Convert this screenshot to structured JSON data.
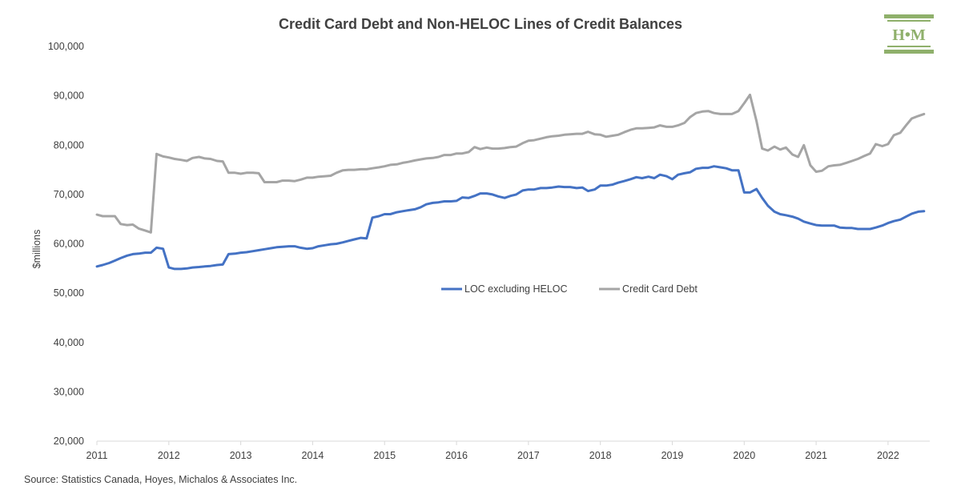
{
  "brand_color": "#8fb06b",
  "logo": {
    "text": "H•M"
  },
  "source": "Source: Statistics Canada, Hoyes, Michalos & Associates Inc.",
  "chart_data": {
    "type": "line",
    "title": "Credit Card Debt and Non-HELOC Lines of Credit Balances",
    "ylabel": "$millions",
    "xlabel": "",
    "ylim": [
      20000,
      100000
    ],
    "yticks": [
      20000,
      30000,
      40000,
      50000,
      60000,
      70000,
      80000,
      90000,
      100000
    ],
    "ytick_labels": [
      "20,000",
      "30,000",
      "40,000",
      "50,000",
      "60,000",
      "70,000",
      "80,000",
      "90,000",
      "100,000"
    ],
    "xlim": [
      2011.0,
      2022.58
    ],
    "xticks": [
      "2011",
      "2012",
      "2013",
      "2014",
      "2015",
      "2016",
      "2017",
      "2018",
      "2019",
      "2020",
      "2021",
      "2022"
    ],
    "grid": false,
    "legend": "center",
    "series": [
      {
        "name": "LOC excluding HELOC",
        "color": "#4472c4",
        "points": [
          [
            2011.0,
            55400
          ],
          [
            2011.08,
            55700
          ],
          [
            2011.17,
            56100
          ],
          [
            2011.25,
            56600
          ],
          [
            2011.33,
            57100
          ],
          [
            2011.42,
            57600
          ],
          [
            2011.5,
            57900
          ],
          [
            2011.58,
            58000
          ],
          [
            2011.67,
            58200
          ],
          [
            2011.75,
            58200
          ],
          [
            2011.83,
            59200
          ],
          [
            2011.92,
            59000
          ],
          [
            2012.0,
            55200
          ],
          [
            2012.08,
            54900
          ],
          [
            2012.17,
            54900
          ],
          [
            2012.25,
            55000
          ],
          [
            2012.33,
            55200
          ],
          [
            2012.42,
            55300
          ],
          [
            2012.5,
            55400
          ],
          [
            2012.58,
            55500
          ],
          [
            2012.67,
            55700
          ],
          [
            2012.75,
            55800
          ],
          [
            2012.83,
            57900
          ],
          [
            2012.92,
            58000
          ],
          [
            2013.0,
            58200
          ],
          [
            2013.08,
            58300
          ],
          [
            2013.17,
            58500
          ],
          [
            2013.25,
            58700
          ],
          [
            2013.33,
            58900
          ],
          [
            2013.42,
            59100
          ],
          [
            2013.5,
            59300
          ],
          [
            2013.58,
            59400
          ],
          [
            2013.67,
            59500
          ],
          [
            2013.75,
            59500
          ],
          [
            2013.83,
            59200
          ],
          [
            2013.92,
            59000
          ],
          [
            2014.0,
            59100
          ],
          [
            2014.08,
            59500
          ],
          [
            2014.17,
            59700
          ],
          [
            2014.25,
            59900
          ],
          [
            2014.33,
            60000
          ],
          [
            2014.42,
            60300
          ],
          [
            2014.5,
            60600
          ],
          [
            2014.58,
            60900
          ],
          [
            2014.67,
            61200
          ],
          [
            2014.75,
            61100
          ],
          [
            2014.83,
            65300
          ],
          [
            2014.92,
            65600
          ],
          [
            2015.0,
            66000
          ],
          [
            2015.08,
            66000
          ],
          [
            2015.17,
            66400
          ],
          [
            2015.25,
            66600
          ],
          [
            2015.33,
            66800
          ],
          [
            2015.42,
            67000
          ],
          [
            2015.5,
            67400
          ],
          [
            2015.58,
            68000
          ],
          [
            2015.67,
            68300
          ],
          [
            2015.75,
            68400
          ],
          [
            2015.83,
            68600
          ],
          [
            2015.92,
            68600
          ],
          [
            2016.0,
            68700
          ],
          [
            2016.08,
            69400
          ],
          [
            2016.17,
            69300
          ],
          [
            2016.25,
            69700
          ],
          [
            2016.33,
            70200
          ],
          [
            2016.42,
            70200
          ],
          [
            2016.5,
            70000
          ],
          [
            2016.58,
            69600
          ],
          [
            2016.67,
            69300
          ],
          [
            2016.75,
            69700
          ],
          [
            2016.83,
            70000
          ],
          [
            2016.92,
            70800
          ],
          [
            2017.0,
            71000
          ],
          [
            2017.08,
            71000
          ],
          [
            2017.17,
            71300
          ],
          [
            2017.25,
            71300
          ],
          [
            2017.33,
            71400
          ],
          [
            2017.42,
            71600
          ],
          [
            2017.5,
            71500
          ],
          [
            2017.58,
            71500
          ],
          [
            2017.67,
            71300
          ],
          [
            2017.75,
            71400
          ],
          [
            2017.83,
            70700
          ],
          [
            2017.92,
            71000
          ],
          [
            2018.0,
            71800
          ],
          [
            2018.08,
            71800
          ],
          [
            2018.17,
            72000
          ],
          [
            2018.25,
            72400
          ],
          [
            2018.33,
            72700
          ],
          [
            2018.42,
            73100
          ],
          [
            2018.5,
            73500
          ],
          [
            2018.58,
            73300
          ],
          [
            2018.67,
            73600
          ],
          [
            2018.75,
            73300
          ],
          [
            2018.83,
            74000
          ],
          [
            2018.92,
            73700
          ],
          [
            2019.0,
            73100
          ],
          [
            2019.08,
            74000
          ],
          [
            2019.17,
            74300
          ],
          [
            2019.25,
            74500
          ],
          [
            2019.33,
            75200
          ],
          [
            2019.42,
            75400
          ],
          [
            2019.5,
            75400
          ],
          [
            2019.58,
            75700
          ],
          [
            2019.67,
            75500
          ],
          [
            2019.75,
            75300
          ],
          [
            2019.83,
            74900
          ],
          [
            2019.92,
            74900
          ],
          [
            2020.0,
            70400
          ],
          [
            2020.08,
            70400
          ],
          [
            2020.17,
            71100
          ],
          [
            2020.25,
            69300
          ],
          [
            2020.33,
            67700
          ],
          [
            2020.42,
            66500
          ],
          [
            2020.5,
            66000
          ],
          [
            2020.58,
            65800
          ],
          [
            2020.67,
            65500
          ],
          [
            2020.75,
            65100
          ],
          [
            2020.83,
            64500
          ],
          [
            2020.92,
            64100
          ],
          [
            2021.0,
            63800
          ],
          [
            2021.08,
            63700
          ],
          [
            2021.17,
            63700
          ],
          [
            2021.25,
            63700
          ],
          [
            2021.33,
            63300
          ],
          [
            2021.42,
            63200
          ],
          [
            2021.5,
            63200
          ],
          [
            2021.58,
            63000
          ],
          [
            2021.67,
            63000
          ],
          [
            2021.75,
            63000
          ],
          [
            2021.83,
            63300
          ],
          [
            2021.92,
            63700
          ],
          [
            2022.0,
            64200
          ],
          [
            2022.08,
            64600
          ],
          [
            2022.17,
            64900
          ],
          [
            2022.25,
            65500
          ],
          [
            2022.33,
            66100
          ],
          [
            2022.42,
            66500
          ],
          [
            2022.5,
            66600
          ]
        ]
      },
      {
        "name": "Credit Card Debt",
        "color": "#a5a5a5",
        "points": [
          [
            2011.0,
            65900
          ],
          [
            2011.08,
            65600
          ],
          [
            2011.17,
            65600
          ],
          [
            2011.25,
            65600
          ],
          [
            2011.33,
            64000
          ],
          [
            2011.42,
            63800
          ],
          [
            2011.5,
            63900
          ],
          [
            2011.58,
            63100
          ],
          [
            2011.67,
            62700
          ],
          [
            2011.75,
            62300
          ],
          [
            2011.83,
            78200
          ],
          [
            2011.92,
            77700
          ],
          [
            2012.0,
            77500
          ],
          [
            2012.08,
            77200
          ],
          [
            2012.17,
            77000
          ],
          [
            2012.25,
            76800
          ],
          [
            2012.33,
            77400
          ],
          [
            2012.42,
            77600
          ],
          [
            2012.5,
            77300
          ],
          [
            2012.58,
            77200
          ],
          [
            2012.67,
            76800
          ],
          [
            2012.75,
            76700
          ],
          [
            2012.83,
            74400
          ],
          [
            2012.92,
            74400
          ],
          [
            2013.0,
            74200
          ],
          [
            2013.08,
            74400
          ],
          [
            2013.17,
            74400
          ],
          [
            2013.25,
            74300
          ],
          [
            2013.33,
            72500
          ],
          [
            2013.42,
            72500
          ],
          [
            2013.5,
            72500
          ],
          [
            2013.58,
            72800
          ],
          [
            2013.67,
            72800
          ],
          [
            2013.75,
            72700
          ],
          [
            2013.83,
            73000
          ],
          [
            2013.92,
            73400
          ],
          [
            2014.0,
            73400
          ],
          [
            2014.08,
            73600
          ],
          [
            2014.17,
            73700
          ],
          [
            2014.25,
            73800
          ],
          [
            2014.33,
            74400
          ],
          [
            2014.42,
            74900
          ],
          [
            2014.5,
            75000
          ],
          [
            2014.58,
            75000
          ],
          [
            2014.67,
            75100
          ],
          [
            2014.75,
            75100
          ],
          [
            2014.83,
            75300
          ],
          [
            2014.92,
            75500
          ],
          [
            2015.0,
            75700
          ],
          [
            2015.08,
            76000
          ],
          [
            2015.17,
            76100
          ],
          [
            2015.25,
            76400
          ],
          [
            2015.33,
            76600
          ],
          [
            2015.42,
            76900
          ],
          [
            2015.5,
            77100
          ],
          [
            2015.58,
            77300
          ],
          [
            2015.67,
            77400
          ],
          [
            2015.75,
            77600
          ],
          [
            2015.83,
            78000
          ],
          [
            2015.92,
            78000
          ],
          [
            2016.0,
            78300
          ],
          [
            2016.08,
            78300
          ],
          [
            2016.17,
            78600
          ],
          [
            2016.25,
            79600
          ],
          [
            2016.33,
            79200
          ],
          [
            2016.42,
            79500
          ],
          [
            2016.5,
            79300
          ],
          [
            2016.58,
            79300
          ],
          [
            2016.67,
            79400
          ],
          [
            2016.75,
            79600
          ],
          [
            2016.83,
            79700
          ],
          [
            2016.92,
            80400
          ],
          [
            2017.0,
            80900
          ],
          [
            2017.08,
            81000
          ],
          [
            2017.17,
            81300
          ],
          [
            2017.25,
            81600
          ],
          [
            2017.33,
            81800
          ],
          [
            2017.42,
            81900
          ],
          [
            2017.5,
            82100
          ],
          [
            2017.58,
            82200
          ],
          [
            2017.67,
            82300
          ],
          [
            2017.75,
            82300
          ],
          [
            2017.83,
            82700
          ],
          [
            2017.92,
            82200
          ],
          [
            2018.0,
            82100
          ],
          [
            2018.08,
            81700
          ],
          [
            2018.17,
            81900
          ],
          [
            2018.25,
            82100
          ],
          [
            2018.33,
            82600
          ],
          [
            2018.42,
            83100
          ],
          [
            2018.5,
            83400
          ],
          [
            2018.58,
            83400
          ],
          [
            2018.67,
            83500
          ],
          [
            2018.75,
            83600
          ],
          [
            2018.83,
            84000
          ],
          [
            2018.92,
            83700
          ],
          [
            2019.0,
            83700
          ],
          [
            2019.08,
            84000
          ],
          [
            2019.17,
            84500
          ],
          [
            2019.25,
            85700
          ],
          [
            2019.33,
            86500
          ],
          [
            2019.42,
            86800
          ],
          [
            2019.5,
            86900
          ],
          [
            2019.58,
            86500
          ],
          [
            2019.67,
            86300
          ],
          [
            2019.75,
            86300
          ],
          [
            2019.83,
            86300
          ],
          [
            2019.92,
            86900
          ],
          [
            2020.0,
            88500
          ],
          [
            2020.08,
            90200
          ],
          [
            2020.17,
            84900
          ],
          [
            2020.25,
            79300
          ],
          [
            2020.33,
            78900
          ],
          [
            2020.42,
            79700
          ],
          [
            2020.5,
            79100
          ],
          [
            2020.58,
            79500
          ],
          [
            2020.67,
            78100
          ],
          [
            2020.75,
            77600
          ],
          [
            2020.83,
            80000
          ],
          [
            2020.92,
            75900
          ],
          [
            2021.0,
            74600
          ],
          [
            2021.08,
            74800
          ],
          [
            2021.17,
            75700
          ],
          [
            2021.25,
            75900
          ],
          [
            2021.33,
            76000
          ],
          [
            2021.42,
            76400
          ],
          [
            2021.5,
            76800
          ],
          [
            2021.58,
            77200
          ],
          [
            2021.67,
            77800
          ],
          [
            2021.75,
            78300
          ],
          [
            2021.83,
            80200
          ],
          [
            2021.92,
            79800
          ],
          [
            2022.0,
            80200
          ],
          [
            2022.08,
            82000
          ],
          [
            2022.17,
            82500
          ],
          [
            2022.25,
            84000
          ],
          [
            2022.33,
            85400
          ],
          [
            2022.42,
            85900
          ],
          [
            2022.5,
            86300
          ]
        ]
      }
    ]
  }
}
